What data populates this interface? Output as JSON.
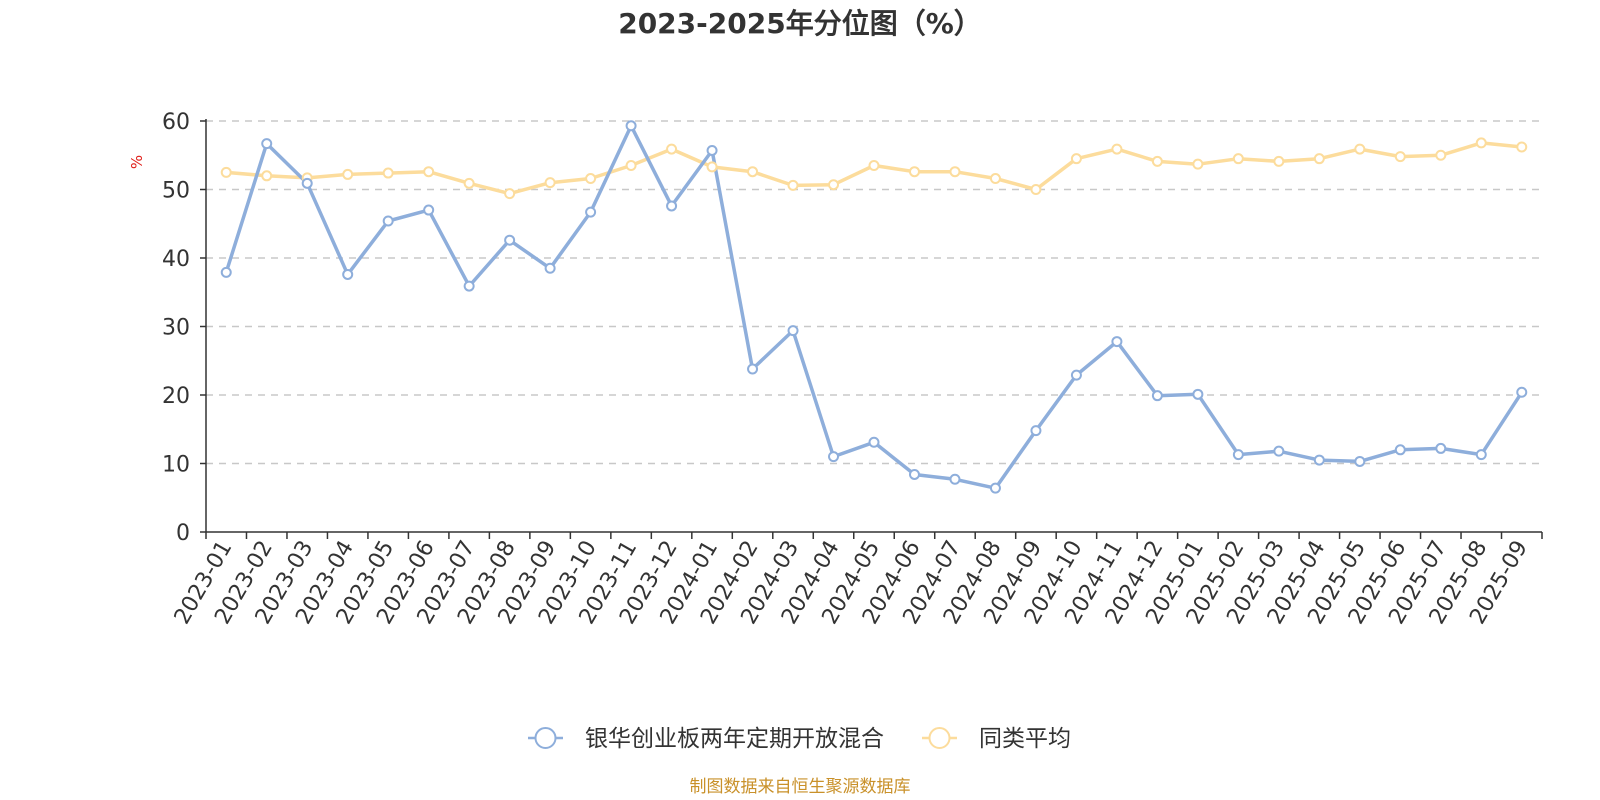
{
  "chart_data": {
    "type": "line",
    "title": "2023-2025年分位图（%）",
    "ylabel": "%",
    "ylim": [
      0,
      60
    ],
    "yticks": [
      0,
      10,
      20,
      30,
      40,
      50,
      60
    ],
    "grid": true,
    "legend_position": "bottom",
    "categories": [
      "2023-01",
      "2023-02",
      "2023-03",
      "2023-04",
      "2023-05",
      "2023-06",
      "2023-07",
      "2023-08",
      "2023-09",
      "2023-10",
      "2023-11",
      "2023-12",
      "2024-01",
      "2024-02",
      "2024-03",
      "2024-04",
      "2024-05",
      "2024-06",
      "2024-07",
      "2024-08",
      "2024-09",
      "2024-10",
      "2024-11",
      "2024-12",
      "2025-01",
      "2025-02",
      "2025-03",
      "2025-04",
      "2025-05",
      "2025-06",
      "2025-07",
      "2025-08",
      "2025-09"
    ],
    "series": [
      {
        "name": "银华创业板两年定期开放混合",
        "color": "#8eaedb",
        "values": [
          37.9,
          56.7,
          50.9,
          37.6,
          45.4,
          47.0,
          35.9,
          42.6,
          38.5,
          46.7,
          59.3,
          47.6,
          55.7,
          23.8,
          29.4,
          11.0,
          13.1,
          8.4,
          7.7,
          6.4,
          14.8,
          22.9,
          27.8,
          19.9,
          20.1,
          11.3,
          11.8,
          10.5,
          10.3,
          12.0,
          12.2,
          11.3,
          20.4
        ]
      },
      {
        "name": "同类平均",
        "color": "#fcdc9c",
        "values": [
          52.5,
          52.0,
          51.7,
          52.2,
          52.4,
          52.6,
          50.9,
          49.4,
          51.0,
          51.6,
          53.5,
          55.9,
          53.3,
          52.6,
          50.6,
          50.7,
          53.5,
          52.6,
          52.6,
          51.6,
          50.0,
          54.5,
          55.9,
          54.1,
          53.7,
          54.5,
          54.1,
          54.5,
          55.9,
          54.8,
          55.0,
          56.8,
          56.2
        ]
      }
    ]
  },
  "source_note": "制图数据来自恒生聚源数据库"
}
